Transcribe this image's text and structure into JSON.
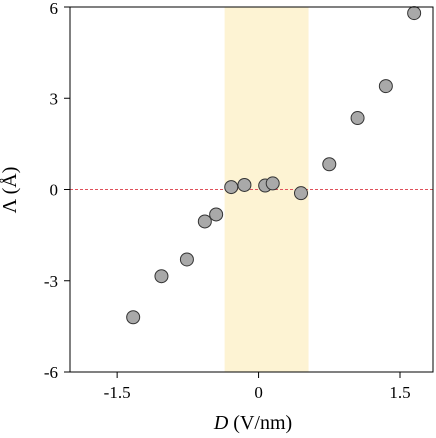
{
  "chart_data": {
    "type": "scatter",
    "title": "",
    "xlabel": {
      "symbol": "D",
      "unit": " (V/nm)"
    },
    "ylabel": {
      "symbol": "Λ",
      "unit": " (Å)"
    },
    "xlim": [
      -2.0,
      1.85
    ],
    "ylim": [
      -6,
      6
    ],
    "xticks": [
      {
        "value": -1.5,
        "label": "-1.5"
      },
      {
        "value": 0,
        "label": "0"
      },
      {
        "value": 1.5,
        "label": "1.5"
      }
    ],
    "yticks": [
      {
        "value": -6,
        "label": "-6"
      },
      {
        "value": -3,
        "label": "-3"
      },
      {
        "value": 0,
        "label": "0"
      },
      {
        "value": 3,
        "label": "3"
      },
      {
        "value": 6,
        "label": "6"
      }
    ],
    "grid": false,
    "highlight_band": {
      "x_range": [
        -0.36,
        0.53
      ],
      "color": "#fdf3d3"
    },
    "reference_line": {
      "y": 0,
      "color": "#e0505a",
      "style": "dashed"
    },
    "marker_color": "#a9a9a9",
    "marker_edge_color": "#333333",
    "series": [
      {
        "points": [
          {
            "x": -1.33,
            "y": -4.2
          },
          {
            "x": -1.03,
            "y": -2.85
          },
          {
            "x": -0.76,
            "y": -2.3
          },
          {
            "x": -0.57,
            "y": -1.05
          },
          {
            "x": -0.45,
            "y": -0.82
          },
          {
            "x": -0.29,
            "y": 0.08
          },
          {
            "x": -0.15,
            "y": 0.15
          },
          {
            "x": 0.07,
            "y": 0.13
          },
          {
            "x": 0.15,
            "y": 0.2
          },
          {
            "x": 0.45,
            "y": -0.12
          },
          {
            "x": 0.75,
            "y": 0.83
          },
          {
            "x": 1.05,
            "y": 2.35
          },
          {
            "x": 1.35,
            "y": 3.4
          },
          {
            "x": 1.65,
            "y": 5.8
          }
        ]
      }
    ]
  }
}
